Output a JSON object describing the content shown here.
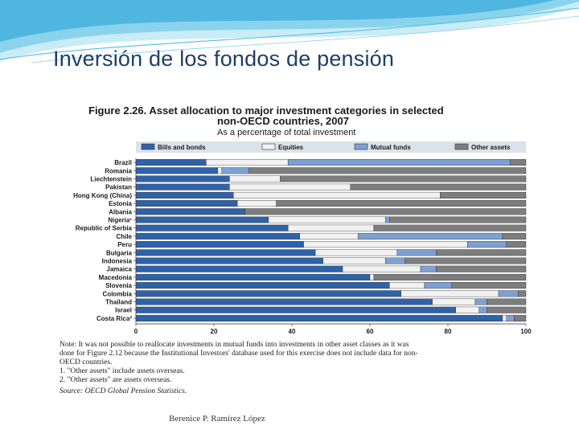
{
  "slide": {
    "title": "Inversión de los fondos de pensión",
    "author": "Berenice P. Ramírez López"
  },
  "colors": {
    "bills": "#2f62a8",
    "equities": "#f2f2f2",
    "mutual": "#7fa0d3",
    "other": "#7d7d7d",
    "legend_bg": "#dbe2ec",
    "swoosh_light": "#a8dff0",
    "swoosh_mid": "#5cc3e4",
    "swoosh_dark": "#2a9fd0"
  },
  "chart_data": {
    "type": "bar",
    "orientation": "horizontal",
    "stacked": true,
    "title_line1": "Figure 2.26. Asset allocation to major investment categories in selected",
    "title_line2": "non-OECD countries, 2007",
    "subtitle": "As a percentage of total investment",
    "xlim": [
      0,
      100
    ],
    "xticks": [
      "0",
      "20",
      "40",
      "60",
      "80",
      "100"
    ],
    "categories": [
      "Brazil",
      "Romania",
      "Liechtenstein",
      "Pakistan",
      "Hong Kong (China)",
      "Estonia",
      "Albania",
      "Nigeria¹",
      "Republic of Serbia",
      "Chile",
      "Peru",
      "Bulgaria",
      "Indonesia",
      "Jamaica",
      "Macedonia",
      "Slovenia",
      "Colombia",
      "Thailand",
      "Israel",
      "Costa Rica²"
    ],
    "series": [
      {
        "name": "Bills and bonds",
        "values": [
          18,
          21,
          24,
          24,
          25,
          26,
          28,
          34,
          39,
          42,
          43,
          46,
          48,
          53,
          60,
          65,
          68,
          76,
          82,
          94
        ]
      },
      {
        "name": "Equities",
        "values": [
          21,
          1,
          13,
          31,
          53,
          10,
          0,
          30,
          22,
          15,
          42,
          21,
          16,
          20,
          1,
          9,
          25,
          11,
          6,
          1
        ]
      },
      {
        "name": "Mutual funds",
        "values": [
          57,
          7,
          0,
          0,
          0,
          0,
          0,
          1,
          0,
          37,
          10,
          10,
          5,
          4,
          0,
          7,
          5,
          3,
          2,
          2
        ]
      },
      {
        "name": "Other assets",
        "values": [
          4,
          71,
          63,
          45,
          22,
          64,
          72,
          35,
          39,
          6,
          5,
          23,
          31,
          23,
          39,
          19,
          2,
          10,
          10,
          3
        ]
      }
    ],
    "notes": [
      "Note: It was not possible to reallocate investments in mutual funds into investments in other asset classes as it was",
      "done for Figure 2.12 because the Institutional Investors' database used for this exercise does not include data for non-",
      "OECD countries.",
      "1. \"Other assets\" include assets overseas.",
      "2. \"Other assets\" are assets overseas."
    ],
    "source": "Source: OECD Global Pension Statistics."
  }
}
